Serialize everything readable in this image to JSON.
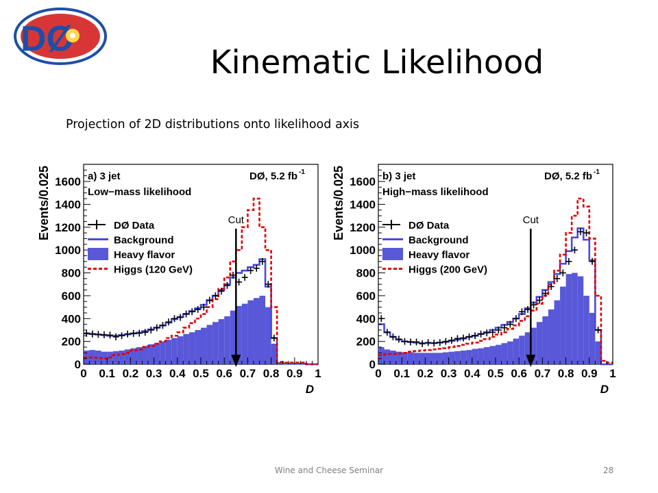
{
  "slide": {
    "title": "Kinematic Likelihood",
    "subtitle": "Projection of 2D distributions onto likelihood axis",
    "footer": "Wine and Cheese Seminar",
    "page_number": "28",
    "logo_text": "DØ"
  },
  "colors": {
    "data": "#000000",
    "background_line": "#4a4ad8",
    "heavy_flavor_fill": "#5858d8",
    "higgs": "#e00000",
    "arrow": "#000000",
    "logo_blue": "#1c4fa8",
    "logo_red": "#d42020"
  },
  "chart_data": [
    {
      "type": "histogram",
      "panel_label": "a) 3 jet",
      "sublabel": "Low−mass likelihood",
      "experiment_label": "DØ, 5.2 fb",
      "lumi_exponent": "-1",
      "xlabel": "D",
      "ylabel": "Events/0.025",
      "xlim": [
        0,
        1
      ],
      "ylim": [
        0,
        1750
      ],
      "x_ticks": [
        "0",
        "0.1",
        "0.2",
        "0.3",
        "0.4",
        "0.5",
        "0.6",
        "0.7",
        "0.8",
        "0.9",
        "1"
      ],
      "y_ticks": [
        "0",
        "200",
        "400",
        "600",
        "800",
        "1000",
        "1200",
        "1400",
        "1600"
      ],
      "legend": [
        "DØ Data",
        "Background",
        "Heavy flavor",
        "Higgs (120 GeV)"
      ],
      "cut_label": "Cut",
      "cut_value": 0.65,
      "bin_width": 0.025,
      "bin_edges": [
        0,
        0.025,
        0.05,
        0.075,
        0.1,
        0.125,
        0.15,
        0.175,
        0.2,
        0.225,
        0.25,
        0.275,
        0.3,
        0.325,
        0.35,
        0.375,
        0.4,
        0.425,
        0.45,
        0.475,
        0.5,
        0.525,
        0.55,
        0.575,
        0.6,
        0.625,
        0.65,
        0.675,
        0.7,
        0.725,
        0.75,
        0.775,
        0.8,
        0.825,
        0.85,
        0.875,
        0.9,
        0.925,
        0.95,
        0.975,
        1.0
      ],
      "data": [
        270,
        265,
        262,
        258,
        255,
        240,
        250,
        265,
        270,
        272,
        280,
        300,
        320,
        340,
        370,
        400,
        410,
        440,
        460,
        480,
        500,
        560,
        600,
        640,
        690,
        780,
        720,
        760,
        820,
        840,
        900,
        700,
        230,
        0,
        0,
        0,
        0,
        0,
        0,
        0
      ],
      "background": [
        270,
        265,
        260,
        255,
        250,
        250,
        255,
        262,
        270,
        278,
        290,
        305,
        320,
        340,
        365,
        395,
        415,
        440,
        465,
        490,
        520,
        560,
        600,
        650,
        700,
        760,
        800,
        820,
        850,
        870,
        920,
        680,
        230,
        10,
        5,
        5,
        5,
        5,
        0,
        0
      ],
      "heavy_flavor": [
        120,
        125,
        120,
        110,
        110,
        115,
        120,
        130,
        140,
        150,
        160,
        175,
        185,
        200,
        215,
        230,
        245,
        265,
        280,
        300,
        320,
        345,
        370,
        395,
        420,
        470,
        510,
        530,
        560,
        580,
        600,
        500,
        180,
        10,
        5,
        5,
        5,
        5,
        0,
        0
      ],
      "higgs": [
        60,
        60,
        55,
        50,
        60,
        80,
        90,
        100,
        120,
        130,
        150,
        160,
        180,
        200,
        230,
        250,
        280,
        320,
        360,
        400,
        440,
        500,
        570,
        660,
        760,
        900,
        1000,
        1200,
        1350,
        1450,
        1200,
        1000,
        500,
        20,
        15,
        15,
        15,
        15,
        0,
        0
      ]
    },
    {
      "type": "histogram",
      "panel_label": "b) 3 jet",
      "sublabel": "High−mass likelihood",
      "experiment_label": "DØ, 5.2 fb",
      "lumi_exponent": "-1",
      "xlabel": "D",
      "ylabel": "Events/0.025",
      "xlim": [
        0,
        1
      ],
      "ylim": [
        0,
        1750
      ],
      "x_ticks": [
        "0",
        "0.1",
        "0.2",
        "0.3",
        "0.4",
        "0.5",
        "0.6",
        "0.7",
        "0.8",
        "0.9",
        "1"
      ],
      "y_ticks": [
        "0",
        "200",
        "400",
        "600",
        "800",
        "1000",
        "1200",
        "1400",
        "1600"
      ],
      "legend": [
        "DØ Data",
        "Background",
        "Heavy flavor",
        "Higgs (200 GeV)"
      ],
      "cut_label": "Cut",
      "cut_value": 0.65,
      "bin_width": 0.025,
      "bin_edges": [
        0,
        0.025,
        0.05,
        0.075,
        0.1,
        0.125,
        0.15,
        0.175,
        0.2,
        0.225,
        0.25,
        0.275,
        0.3,
        0.325,
        0.35,
        0.375,
        0.4,
        0.425,
        0.45,
        0.475,
        0.5,
        0.525,
        0.55,
        0.575,
        0.6,
        0.625,
        0.65,
        0.675,
        0.7,
        0.725,
        0.75,
        0.775,
        0.8,
        0.825,
        0.85,
        0.875,
        0.9,
        0.925,
        0.95,
        0.975,
        1.0
      ],
      "data": [
        400,
        280,
        240,
        220,
        200,
        195,
        195,
        180,
        190,
        185,
        190,
        200,
        210,
        225,
        230,
        240,
        250,
        265,
        275,
        280,
        300,
        320,
        350,
        400,
        460,
        480,
        520,
        560,
        620,
        680,
        750,
        800,
        900,
        1000,
        1160,
        1150,
        900,
        300,
        0,
        0
      ],
      "background": [
        350,
        280,
        240,
        215,
        200,
        195,
        190,
        185,
        185,
        185,
        190,
        195,
        205,
        215,
        225,
        240,
        250,
        265,
        280,
        300,
        320,
        345,
        370,
        400,
        440,
        490,
        540,
        590,
        650,
        720,
        790,
        880,
        990,
        1110,
        1190,
        1090,
        910,
        300,
        0,
        0
      ],
      "heavy_flavor": [
        150,
        130,
        120,
        110,
        105,
        105,
        100,
        100,
        100,
        100,
        100,
        105,
        110,
        115,
        120,
        125,
        135,
        140,
        150,
        160,
        170,
        185,
        200,
        225,
        250,
        280,
        320,
        370,
        420,
        480,
        560,
        680,
        790,
        800,
        770,
        600,
        450,
        200,
        0,
        0
      ],
      "higgs": [
        80,
        90,
        90,
        95,
        100,
        110,
        115,
        120,
        125,
        130,
        135,
        140,
        150,
        160,
        170,
        180,
        190,
        205,
        220,
        240,
        260,
        280,
        310,
        340,
        380,
        420,
        470,
        530,
        600,
        700,
        820,
        960,
        1150,
        1300,
        1450,
        1380,
        1100,
        600,
        30,
        15
      ]
    }
  ]
}
